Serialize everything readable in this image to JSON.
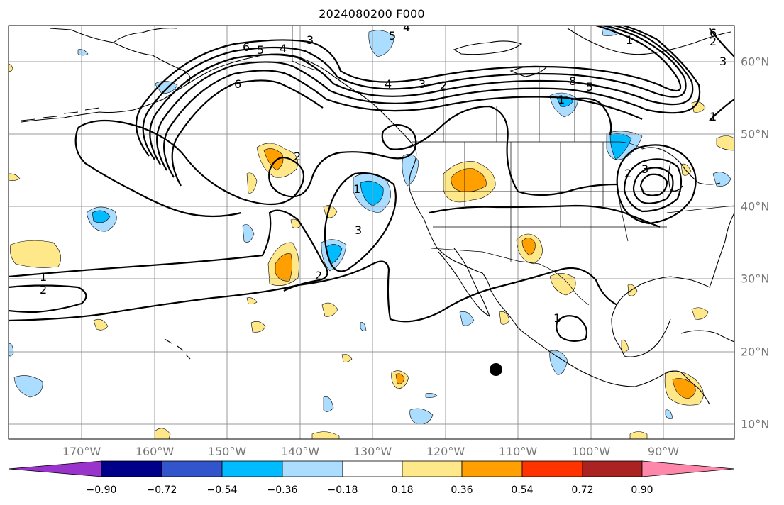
{
  "title": "2024080200 F000",
  "map": {
    "projection": "lat-lon",
    "lon_range": [
      "180°W",
      "80°W"
    ],
    "lat_range": [
      "8°N",
      "65°N"
    ],
    "gridlines": true,
    "marker": "black-dot"
  },
  "lon_labels": [
    "170°W",
    "160°W",
    "150°W",
    "140°W",
    "130°W",
    "120°W",
    "110°W",
    "100°W",
    "90°W"
  ],
  "lat_labels": [
    "60°N",
    "50°N",
    "40°N",
    "30°N",
    "20°N",
    "10°N"
  ],
  "contour_labels": [
    "6",
    "5",
    "4",
    "3",
    "5",
    "4",
    "6",
    "4",
    "3",
    "2",
    "1",
    "8",
    "5",
    "1",
    "2",
    "2",
    "3",
    "3",
    "2",
    "1",
    "1",
    "2",
    "1",
    "1",
    "3",
    "2",
    "6"
  ],
  "colorbar": {
    "ticks": [
      "−0.90",
      "−0.72",
      "−0.54",
      "−0.36",
      "−0.18",
      "0.18",
      "0.36",
      "0.54",
      "0.72",
      "0.90"
    ],
    "colors": [
      "#9933cc",
      "#000088",
      "#3355cc",
      "#00bbff",
      "#aaddff",
      "#ffffff",
      "#ffe88a",
      "#ffa000",
      "#ff3300",
      "#aa2222",
      "#ff88aa"
    ]
  },
  "colors": {
    "light_blue": "#aaddff",
    "blue": "#00bbff",
    "yellow": "#ffe88a",
    "orange": "#ffa000"
  }
}
